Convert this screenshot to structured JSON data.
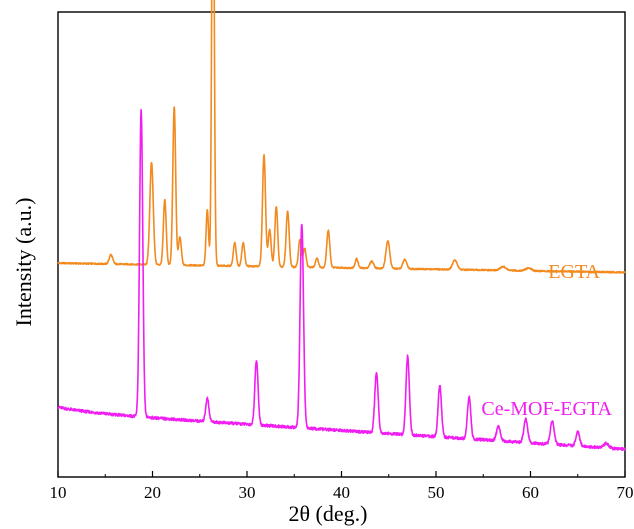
{
  "chart_data": {
    "type": "line",
    "xlabel": "2θ (deg.)",
    "ylabel": "Intensity (a.u.)",
    "xlim": [
      10,
      70
    ],
    "xticks": [
      "10",
      "20",
      "30",
      "40",
      "50",
      "60",
      "70"
    ],
    "yticks": [],
    "grid": false,
    "legend": "none",
    "series": [
      {
        "name": "EGTA",
        "color": "#F28A1E",
        "baseline": 0.46,
        "baseline_end": 0.44,
        "peaks": [
          {
            "x": 15.6,
            "h": 0.02,
            "w": 0.18
          },
          {
            "x": 19.9,
            "h": 0.22,
            "w": 0.18
          },
          {
            "x": 21.3,
            "h": 0.14,
            "w": 0.15
          },
          {
            "x": 22.3,
            "h": 0.34,
            "w": 0.15
          },
          {
            "x": 22.9,
            "h": 0.06,
            "w": 0.15
          },
          {
            "x": 25.8,
            "h": 0.12,
            "w": 0.13
          },
          {
            "x": 26.4,
            "h": 0.99,
            "w": 0.13
          },
          {
            "x": 28.7,
            "h": 0.05,
            "w": 0.15
          },
          {
            "x": 29.6,
            "h": 0.05,
            "w": 0.15
          },
          {
            "x": 31.8,
            "h": 0.24,
            "w": 0.16
          },
          {
            "x": 32.4,
            "h": 0.08,
            "w": 0.15
          },
          {
            "x": 33.1,
            "h": 0.13,
            "w": 0.15
          },
          {
            "x": 34.3,
            "h": 0.12,
            "w": 0.16
          },
          {
            "x": 35.6,
            "h": 0.06,
            "w": 0.15
          },
          {
            "x": 36.1,
            "h": 0.04,
            "w": 0.15
          },
          {
            "x": 37.4,
            "h": 0.02,
            "w": 0.15
          },
          {
            "x": 38.6,
            "h": 0.08,
            "w": 0.16
          },
          {
            "x": 41.6,
            "h": 0.02,
            "w": 0.15
          },
          {
            "x": 43.2,
            "h": 0.015,
            "w": 0.2
          },
          {
            "x": 44.9,
            "h": 0.06,
            "w": 0.2
          },
          {
            "x": 46.7,
            "h": 0.02,
            "w": 0.2
          },
          {
            "x": 52.0,
            "h": 0.02,
            "w": 0.25
          },
          {
            "x": 57.1,
            "h": 0.008,
            "w": 0.3
          },
          {
            "x": 59.8,
            "h": 0.006,
            "w": 0.3
          }
        ]
      },
      {
        "name": "Ce-MOF-EGTA",
        "color": "#F01EF0",
        "baseline": 0.14,
        "baseline_end": 0.06,
        "peaks": [
          {
            "x": 18.8,
            "h": 0.66,
            "w": 0.17
          },
          {
            "x": 25.8,
            "h": 0.05,
            "w": 0.17
          },
          {
            "x": 31.0,
            "h": 0.14,
            "w": 0.17
          },
          {
            "x": 35.8,
            "h": 0.44,
            "w": 0.18
          },
          {
            "x": 43.7,
            "h": 0.13,
            "w": 0.18
          },
          {
            "x": 47.0,
            "h": 0.17,
            "w": 0.18
          },
          {
            "x": 50.4,
            "h": 0.11,
            "w": 0.18
          },
          {
            "x": 53.5,
            "h": 0.09,
            "w": 0.18
          },
          {
            "x": 56.6,
            "h": 0.03,
            "w": 0.2
          },
          {
            "x": 59.5,
            "h": 0.05,
            "w": 0.2
          },
          {
            "x": 62.3,
            "h": 0.05,
            "w": 0.2
          },
          {
            "x": 65.0,
            "h": 0.03,
            "w": 0.2
          },
          {
            "x": 68.0,
            "h": 0.01,
            "w": 0.25
          }
        ]
      }
    ],
    "annotations": [
      {
        "text": "EGTA",
        "series": 0
      },
      {
        "text": "Ce-MOF-EGTA",
        "series": 1
      }
    ]
  }
}
